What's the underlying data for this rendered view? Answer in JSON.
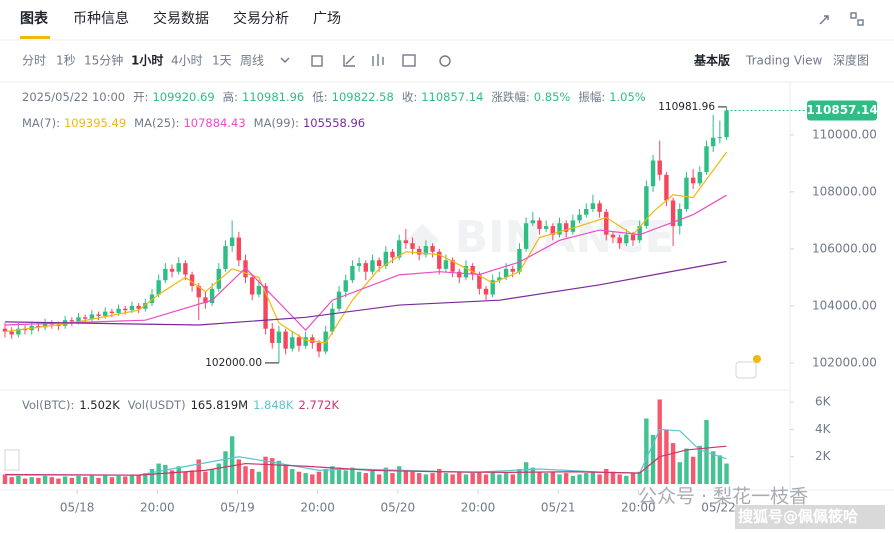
{
  "tabs": [
    "图表",
    "币种信息",
    "交易数据",
    "交易分析",
    "广场"
  ],
  "intervals": [
    "分时",
    "1秒",
    "15分钟",
    "1小时",
    "4小时",
    "1天",
    "周线"
  ],
  "views": [
    "基本版",
    "Trading View",
    "深度图"
  ],
  "info": {
    "datetime": "2025/05/22 10:00",
    "items": [
      {
        "label": "开:",
        "value": "109920.69"
      },
      {
        "label": "高:",
        "value": "110981.96"
      },
      {
        "label": "低:",
        "value": "109822.58"
      },
      {
        "label": "收:",
        "value": "110857.14"
      },
      {
        "label": "涨跌幅:",
        "value": "0.85%"
      },
      {
        "label": "振幅:",
        "value": "1.05%"
      }
    ]
  },
  "ma_legend": [
    {
      "label": "MA(7):",
      "value": "109395.49"
    },
    {
      "label": "MA(25):",
      "value": "107884.43"
    },
    {
      "label": "MA(99):",
      "value": "105558.96"
    }
  ],
  "vol_legend": [
    {
      "label": "Vol(BTC):",
      "value": "1.502K"
    },
    {
      "label": "Vol(USDT)",
      "value": "165.819M"
    },
    {
      "label": "",
      "value": "1.848K"
    },
    {
      "label": "",
      "value": "2.772K"
    }
  ],
  "watermark": [
    "公众号 · 梨花一枝香",
    "搜狐号@佩佩筱哈"
  ],
  "chart_data": {
    "type": "candlestick",
    "up_color": "#2ebd85",
    "down_color": "#f6465d",
    "ohlc": [
      [
        103200,
        103400,
        102900,
        103100
      ],
      [
        103100,
        103250,
        102850,
        103000
      ],
      [
        103000,
        103400,
        102900,
        103200
      ],
      [
        103200,
        103350,
        103000,
        103150
      ],
      [
        103150,
        103450,
        103000,
        103300
      ],
      [
        103300,
        103400,
        103100,
        103250
      ],
      [
        103250,
        103550,
        103150,
        103400
      ],
      [
        103400,
        103500,
        103200,
        103350
      ],
      [
        103350,
        103450,
        103150,
        103300
      ],
      [
        103300,
        103650,
        103200,
        103500
      ],
      [
        103500,
        103600,
        103300,
        103450
      ],
      [
        103450,
        103750,
        103350,
        103600
      ],
      [
        103600,
        103700,
        103400,
        103550
      ],
      [
        103550,
        103850,
        103450,
        103700
      ],
      [
        103700,
        103800,
        103500,
        103650
      ],
      [
        103650,
        103950,
        103550,
        103800
      ],
      [
        103800,
        103900,
        103600,
        103750
      ],
      [
        103750,
        104050,
        103650,
        103900
      ],
      [
        103900,
        104000,
        103700,
        103850
      ],
      [
        103850,
        104150,
        103750,
        104000
      ],
      [
        104000,
        104100,
        103750,
        103900
      ],
      [
        103900,
        104250,
        103800,
        104100
      ],
      [
        104100,
        104600,
        104000,
        104400
      ],
      [
        104400,
        105100,
        104300,
        104900
      ],
      [
        104900,
        105500,
        104800,
        105300
      ],
      [
        105300,
        105450,
        105000,
        105200
      ],
      [
        105200,
        105700,
        105100,
        105500
      ],
      [
        105500,
        105600,
        104900,
        105100
      ],
      [
        105100,
        105200,
        104500,
        104700
      ],
      [
        104700,
        104800,
        103500,
        104300
      ],
      [
        104300,
        104500,
        103900,
        104100
      ],
      [
        104100,
        104800,
        104000,
        104600
      ],
      [
        104600,
        105500,
        104500,
        105300
      ],
      [
        105300,
        106300,
        105200,
        106100
      ],
      [
        106100,
        107000,
        105900,
        106400
      ],
      [
        106400,
        106600,
        105400,
        105600
      ],
      [
        105600,
        105800,
        104800,
        105000
      ],
      [
        105000,
        105100,
        104200,
        104400
      ],
      [
        104400,
        104900,
        104300,
        104700
      ],
      [
        104700,
        104800,
        103000,
        103200
      ],
      [
        103200,
        103400,
        102500,
        102700
      ],
      [
        102700,
        103300,
        102000,
        103100
      ],
      [
        103100,
        103200,
        102300,
        102500
      ],
      [
        102500,
        103100,
        102400,
        102900
      ],
      [
        102900,
        103000,
        102400,
        102600
      ],
      [
        102600,
        103100,
        102500,
        102900
      ],
      [
        102900,
        103000,
        102500,
        102700
      ],
      [
        102700,
        102800,
        102200,
        102400
      ],
      [
        102400,
        103300,
        102300,
        103100
      ],
      [
        103100,
        104100,
        103000,
        103900
      ],
      [
        103900,
        104700,
        103800,
        104500
      ],
      [
        104500,
        105100,
        104300,
        104900
      ],
      [
        104900,
        105600,
        104800,
        105400
      ],
      [
        105400,
        105700,
        105200,
        105500
      ],
      [
        105500,
        105600,
        104900,
        105200
      ],
      [
        105200,
        105800,
        105100,
        105600
      ],
      [
        105600,
        105700,
        105200,
        105400
      ],
      [
        105400,
        106100,
        105300,
        105900
      ],
      [
        105900,
        106000,
        105500,
        105700
      ],
      [
        105700,
        106500,
        105600,
        106300
      ],
      [
        106300,
        106700,
        106000,
        106200
      ],
      [
        106200,
        106400,
        105800,
        106000
      ],
      [
        106000,
        106100,
        105600,
        105800
      ],
      [
        105800,
        106300,
        105700,
        106100
      ],
      [
        106100,
        106200,
        105700,
        105900
      ],
      [
        105900,
        106000,
        105100,
        105300
      ],
      [
        105300,
        105800,
        105200,
        105600
      ],
      [
        105600,
        105700,
        105000,
        105200
      ],
      [
        105200,
        105300,
        104800,
        105000
      ],
      [
        105000,
        105600,
        104900,
        105400
      ],
      [
        105400,
        105500,
        104900,
        105100
      ],
      [
        105100,
        105200,
        104400,
        104600
      ],
      [
        104600,
        104700,
        104200,
        104400
      ],
      [
        104400,
        105100,
        104300,
        104900
      ],
      [
        104900,
        105200,
        104800,
        105000
      ],
      [
        105000,
        105500,
        104900,
        105300
      ],
      [
        105300,
        105400,
        105000,
        105200
      ],
      [
        105200,
        106200,
        105100,
        106000
      ],
      [
        106000,
        107100,
        105900,
        106900
      ],
      [
        106900,
        107300,
        106800,
        107000
      ],
      [
        107000,
        107100,
        106500,
        106700
      ],
      [
        106700,
        107000,
        106600,
        106800
      ],
      [
        106800,
        106900,
        106300,
        106500
      ],
      [
        106500,
        107100,
        106400,
        106900
      ],
      [
        106900,
        107000,
        106400,
        106600
      ],
      [
        106600,
        107200,
        106500,
        107000
      ],
      [
        107000,
        107400,
        106900,
        107200
      ],
      [
        107200,
        107600,
        107100,
        107400
      ],
      [
        107400,
        107900,
        107300,
        107600
      ],
      [
        107600,
        107700,
        107100,
        107300
      ],
      [
        107300,
        107400,
        106300,
        106500
      ],
      [
        106500,
        106600,
        106200,
        106400
      ],
      [
        106400,
        106500,
        106000,
        106200
      ],
      [
        106200,
        106700,
        106100,
        106500
      ],
      [
        106500,
        106600,
        106100,
        106300
      ],
      [
        106300,
        107000,
        106200,
        106800
      ],
      [
        106800,
        108400,
        106700,
        108200
      ],
      [
        108200,
        109300,
        108000,
        109100
      ],
      [
        109100,
        109800,
        108400,
        108600
      ],
      [
        108600,
        108700,
        107500,
        107700
      ],
      [
        107700,
        107800,
        106100,
        106800
      ],
      [
        106800,
        107600,
        106500,
        107400
      ],
      [
        107400,
        108700,
        107300,
        108500
      ],
      [
        108500,
        108800,
        108100,
        108300
      ],
      [
        108300,
        108900,
        108200,
        108700
      ],
      [
        108700,
        109800,
        108600,
        109600
      ],
      [
        109600,
        110700,
        109400,
        109900
      ],
      [
        109900,
        110500,
        109700,
        109920.69
      ],
      [
        109920.69,
        110981.96,
        109822.58,
        110857.14
      ]
    ],
    "lines": [
      {
        "color": "#f0b90b",
        "x": [
          0,
          10,
          20,
          23,
          27,
          30,
          34,
          38,
          41,
          45,
          48,
          52,
          56,
          60,
          65,
          70,
          73,
          77,
          80,
          86,
          90,
          94,
          97,
          100,
          103,
          108
        ],
        "values": [
          103100,
          103400,
          103850,
          104400,
          105000,
          104500,
          105300,
          105000,
          103400,
          102800,
          102700,
          104200,
          105300,
          105900,
          105800,
          105200,
          104800,
          105200,
          106400,
          106800,
          107100,
          106500,
          107300,
          107900,
          107800,
          109395.49
        ]
      },
      {
        "color": "#e84ec6",
        "x": [
          0,
          21,
          31,
          36,
          45,
          49,
          59,
          65,
          71,
          77,
          83,
          89,
          95,
          103,
          108
        ],
        "values": [
          103330,
          103500,
          104200,
          105330,
          103150,
          104200,
          105090,
          105200,
          105100,
          105540,
          106300,
          106660,
          106500,
          107200,
          107884.43
        ]
      },
      {
        "color": "#7b2a9b",
        "x": [
          0,
          29,
          45,
          59,
          74,
          89,
          101,
          108
        ],
        "values": [
          103440,
          103330,
          103600,
          104030,
          104200,
          104740,
          105260,
          105558.96
        ]
      }
    ],
    "xlim": [
      -0.75,
      117.5
    ],
    "xticks": [
      {
        "value": 10.8,
        "label": "05/18"
      },
      {
        "value": 22.8,
        "label": "20:00"
      },
      {
        "value": 34.8,
        "label": "05/19"
      },
      {
        "value": 46.8,
        "label": "20:00"
      },
      {
        "value": 58.8,
        "label": "05/20"
      },
      {
        "value": 70.8,
        "label": "20:00"
      },
      {
        "value": 82.8,
        "label": "05/21"
      },
      {
        "value": 94.8,
        "label": "20:00"
      },
      {
        "value": 106.8,
        "label": "05/22"
      }
    ],
    "ylim": [
      101050,
      111750
    ],
    "yticks": [
      {
        "value": 102000,
        "label": "102000.00"
      },
      {
        "value": 104000,
        "label": "104000.00"
      },
      {
        "value": 106000,
        "label": "106000.00"
      },
      {
        "value": 108000,
        "label": "108000.00"
      },
      {
        "value": 110000,
        "label": "110000.00"
      }
    ],
    "last_price_label": "110857.14",
    "high_label": "110981.96",
    "low_label": "102000.00",
    "volume": {
      "values": [
        700,
        500,
        600,
        400,
        500,
        450,
        600,
        500,
        400,
        550,
        450,
        600,
        500,
        650,
        450,
        700,
        500,
        600,
        550,
        700,
        650,
        800,
        1100,
        1500,
        1400,
        1000,
        1300,
        900,
        1000,
        1800,
        900,
        1100,
        1500,
        2400,
        3500,
        1800,
        1300,
        1100,
        900,
        2000,
        1900,
        1700,
        1400,
        1100,
        900,
        800,
        700,
        900,
        1100,
        1300,
        1200,
        1000,
        1200,
        900,
        800,
        1000,
        700,
        1200,
        800,
        1300,
        1000,
        900,
        800,
        700,
        800,
        1100,
        800,
        700,
        900,
        700,
        800,
        900,
        700,
        900,
        700,
        800,
        700,
        1100,
        1600,
        1200,
        900,
        800,
        900,
        700,
        800,
        600,
        700,
        800,
        900,
        700,
        1100,
        900,
        700,
        600,
        800,
        900,
        4800,
        3600,
        6200,
        4000,
        3000,
        1600,
        2600,
        2000,
        2800,
        4700,
        2400,
        2100,
        1502
      ],
      "ylim": [
        0,
        6600
      ],
      "yticks": [
        {
          "value": 2000,
          "label": "2K"
        },
        {
          "value": 4000,
          "label": "4K"
        },
        {
          "value": 6000,
          "label": "6K"
        }
      ],
      "lines": [
        {
          "color": "#5ec3cf",
          "x": [
            0,
            20,
            26,
            35,
            40,
            47,
            52,
            60,
            70,
            80,
            90,
            95,
            98,
            101,
            104,
            108
          ],
          "values": [
            650,
            650,
            1200,
            2000,
            1600,
            1000,
            1100,
            1000,
            850,
            1100,
            850,
            800,
            4000,
            3900,
            2500,
            1848
          ]
        },
        {
          "color": "#c9366d",
          "x": [
            0,
            20,
            30,
            36,
            45,
            55,
            65,
            75,
            85,
            95,
            98,
            102,
            108
          ],
          "values": [
            700,
            650,
            1000,
            1500,
            1300,
            1000,
            900,
            850,
            900,
            800,
            2000,
            2500,
            2772
          ]
        }
      ]
    }
  }
}
